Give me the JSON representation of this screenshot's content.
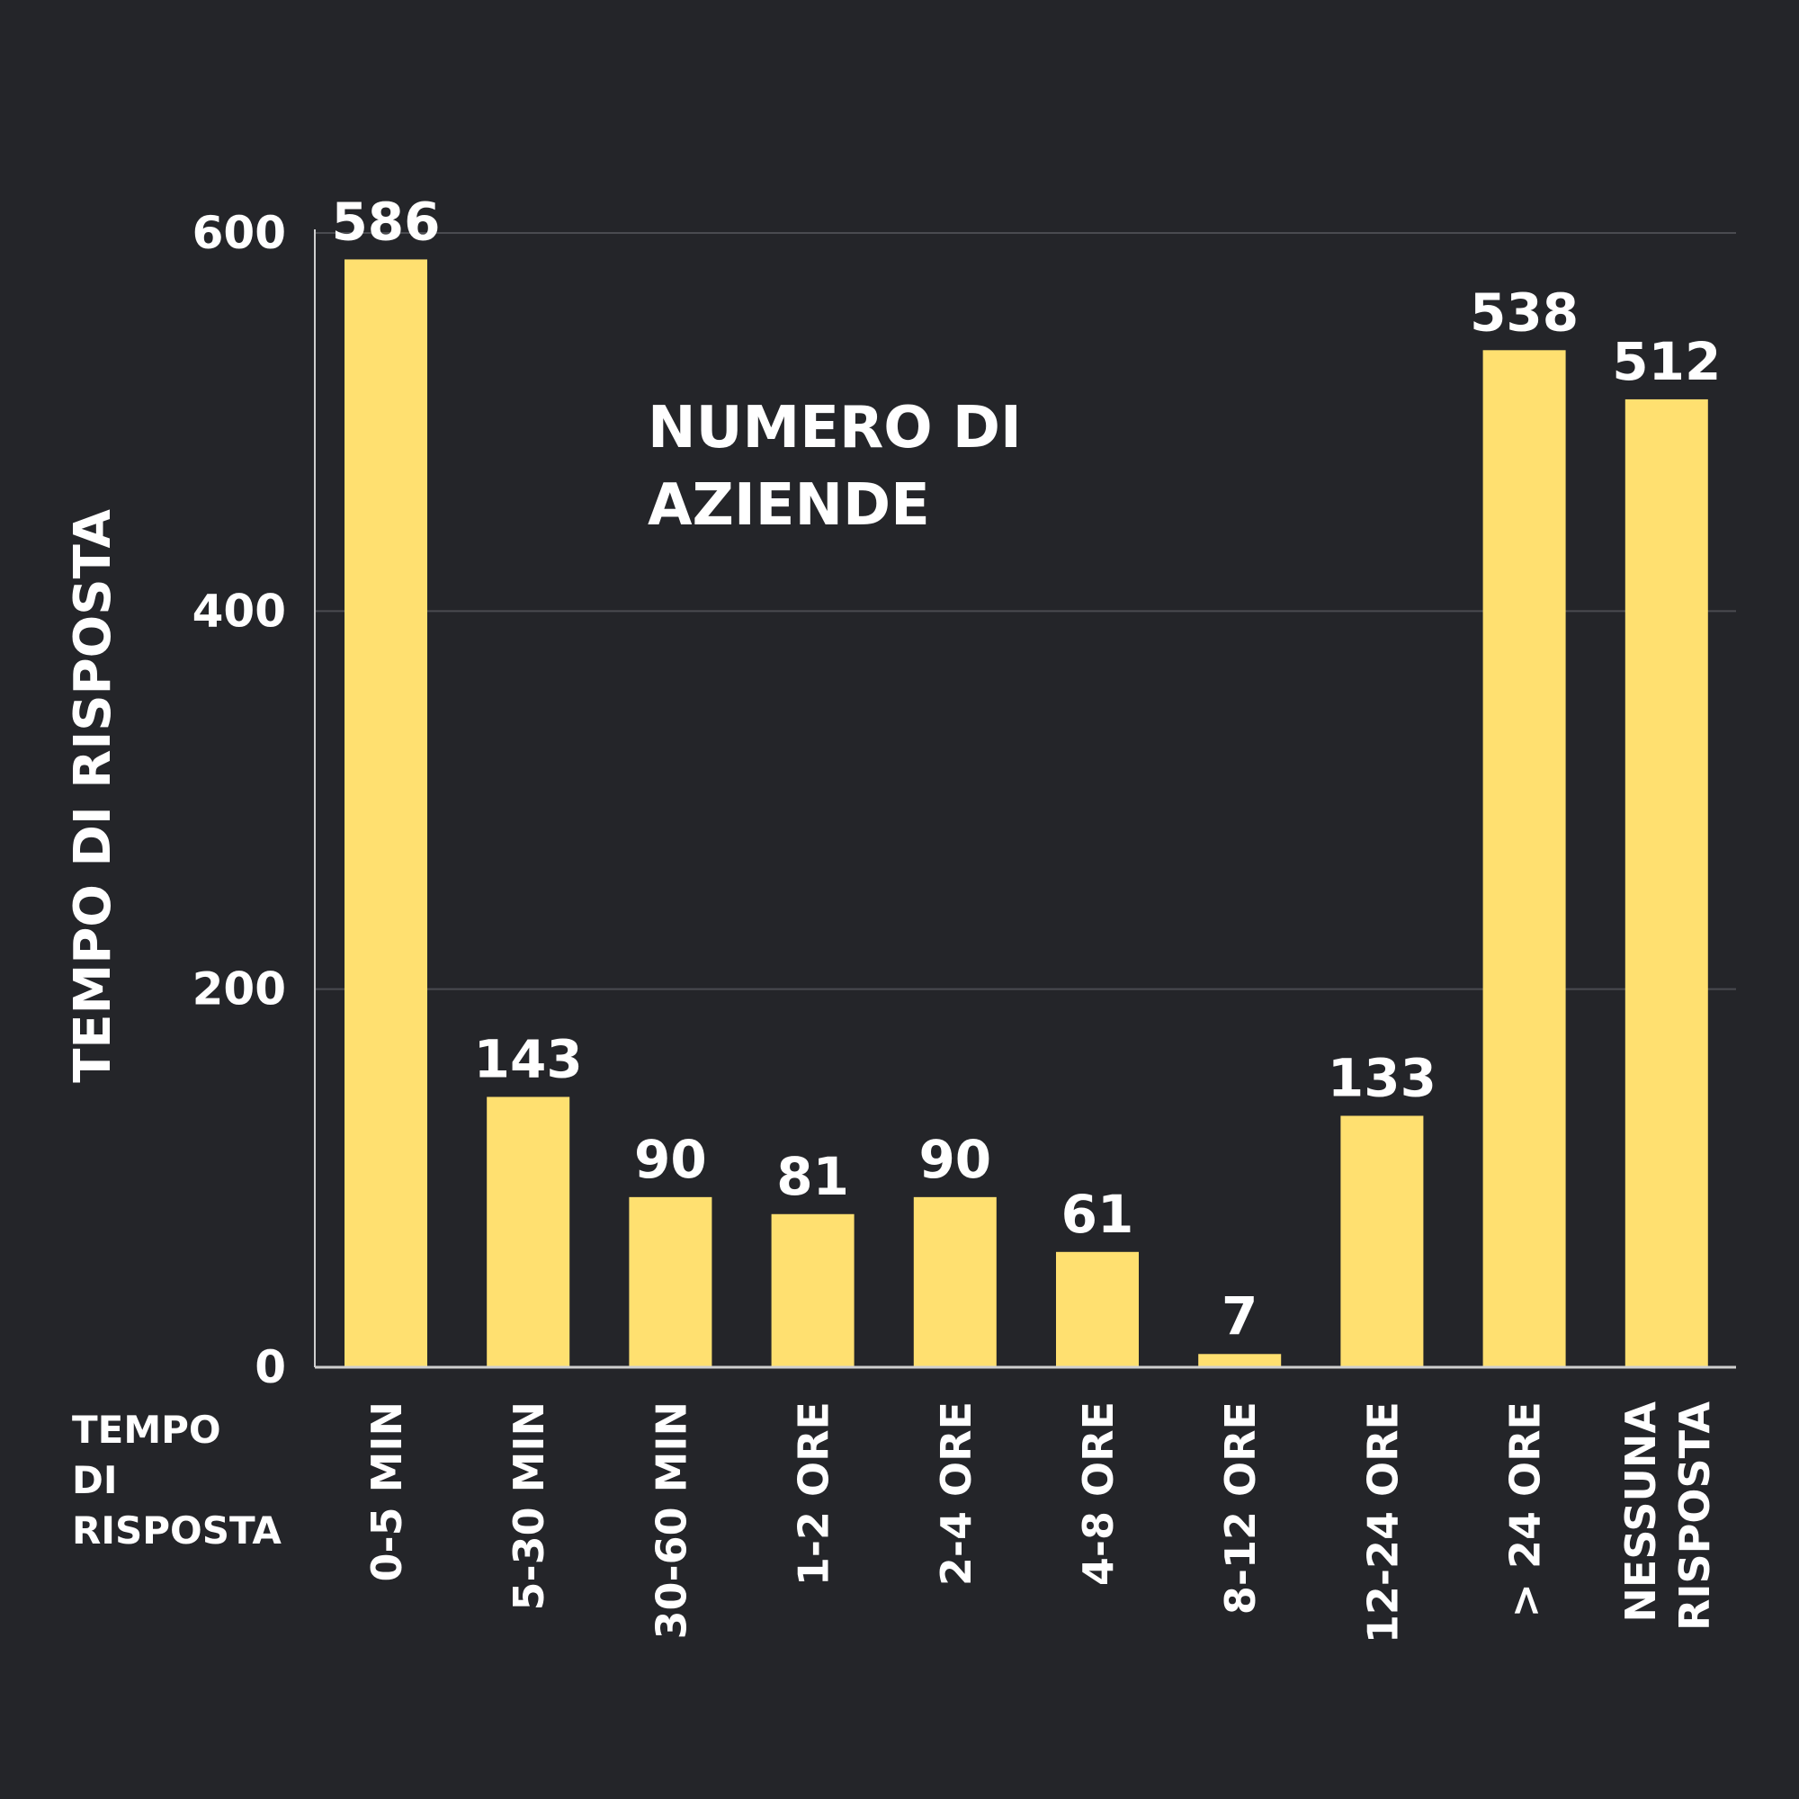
{
  "colors": {
    "background": "#242529",
    "bar": "#FFE070",
    "grid": "#4a4b50",
    "axis": "#cfcfcf",
    "text": "#ffffff"
  },
  "chart_data": {
    "type": "bar",
    "title": "NUMERO DI AZIENDE",
    "title_lines": [
      "NUMERO DI",
      "AZIENDE"
    ],
    "ylabel": "TEMPO DI RISPOSTA",
    "xlabel_lines": [
      "TEMPO",
      "DI",
      "RISPOSTA"
    ],
    "categories": [
      [
        "0-5 MIN"
      ],
      [
        "5-30 MIN"
      ],
      [
        "30-60 MIN"
      ],
      [
        "1-2 ORE"
      ],
      [
        "2-4 ORE"
      ],
      [
        "4-8 ORE"
      ],
      [
        "8-12 ORE"
      ],
      [
        "12-24 ORE"
      ],
      [
        "> 24 ORE"
      ],
      [
        "NESSUNA",
        "RISPOSTA"
      ]
    ],
    "values": [
      586,
      143,
      90,
      81,
      90,
      61,
      7,
      133,
      538,
      512
    ],
    "data_labels": [
      "586",
      "143",
      "90",
      "81",
      "90",
      "61",
      "7",
      "133",
      "538",
      "512"
    ],
    "yticks": [
      0,
      200,
      400,
      600
    ],
    "ytick_labels": [
      "0",
      "200",
      "400",
      "600"
    ],
    "ylim": [
      0,
      600
    ],
    "grid": true,
    "legend": "none"
  }
}
